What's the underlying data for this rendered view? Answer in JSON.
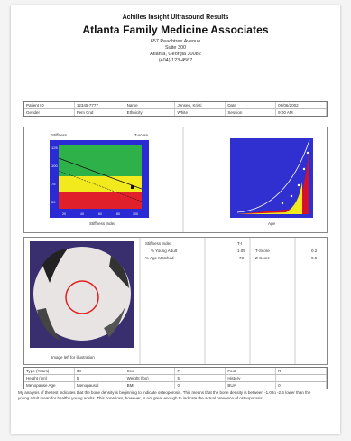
{
  "header": {
    "top_line": "Achilles Insight Ultrasound Results",
    "practice_name": "Atlanta Family Medicine Associates",
    "address_lines": [
      "657 Peachtree Avenue",
      "Suite 300",
      "Atlanta, Georgia 30082",
      "(404) 123-4567"
    ]
  },
  "patient_table": {
    "rows": [
      [
        "Patient ID",
        "12345-7777",
        "Name",
        "Jensen, Kristi",
        "Date",
        "06/06/2002"
      ],
      [
        "Gender",
        "Fem Cnd",
        "Ethnicity",
        "White",
        "Session",
        "9:00 AM"
      ]
    ]
  },
  "graph_left": {
    "label_top_left": "Stiffness",
    "label_top_right": "T-score",
    "caption": "Stiffness Index",
    "y_ticks": [
      "125",
      "100",
      "75",
      "50"
    ],
    "x_ticks": [
      "20",
      "40",
      "60",
      "80",
      "100"
    ],
    "colors": {
      "green": "#2fb14a",
      "yellow": "#f2ea1c",
      "red": "#e0202a",
      "frame": "#2b2bd6"
    }
  },
  "graph_right": {
    "caption": "Age",
    "colors": {
      "bg": "#3030d0",
      "yellow": "#f2ea1c",
      "red": "#d4102a"
    }
  },
  "results": {
    "title": "Stiffness Index",
    "value_header": "T-I",
    "rows": [
      {
        "label": "% Young Adult",
        "value": "1.05",
        "score_label": "T-Score",
        "score": "0.2"
      },
      {
        "label": "% Age Matched",
        "value": "73",
        "score_label": "Z-Score",
        "score": "0.5"
      }
    ]
  },
  "heel_image": {
    "caption": "Image left for illustration",
    "colors": {
      "bg": "#3a2f6e",
      "circle": "#e02020"
    }
  },
  "bottom_table": {
    "rows": [
      [
        "Type (Years)",
        "38",
        "Sex",
        "F",
        "Foot",
        "R"
      ],
      [
        "Height (cm)",
        "5",
        "Weight (lbs)",
        "5",
        "History",
        ""
      ],
      [
        "Menopause Age",
        "Menopausal",
        "BMI",
        "0",
        "BUA",
        "0"
      ]
    ]
  },
  "interpretation": "My analysis of the test indicates that the bone density is beginning to indicate osteoporosis. This means that the bone density is between -1.0 to -2.5 lower than the young adult mean for healthy young adults. This bone loss, however, is not great enough to indicate the actual presence of osteoporosis."
}
